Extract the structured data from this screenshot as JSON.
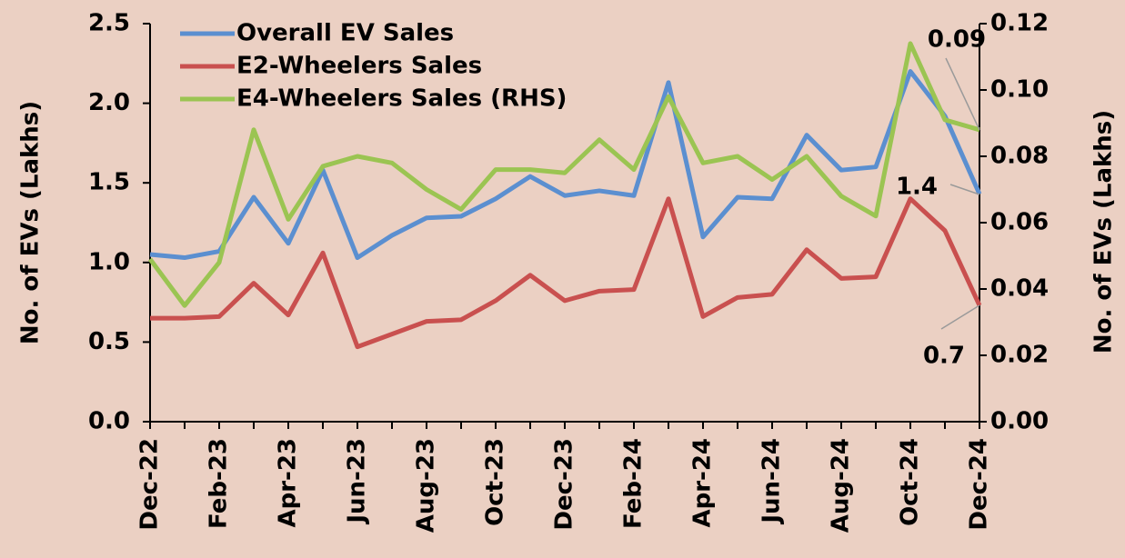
{
  "chart_data": {
    "type": "line",
    "categories": [
      "Dec-22",
      null,
      "Feb-23",
      null,
      "Apr-23",
      null,
      "Jun-23",
      null,
      "Aug-23",
      null,
      "Oct-23",
      null,
      "Dec-23",
      null,
      "Feb-24",
      null,
      "Apr-24",
      null,
      "Jun-24",
      null,
      "Aug-24",
      null,
      "Oct-24",
      null,
      "Dec-24"
    ],
    "series": [
      {
        "name": "Overall EV Sales",
        "color": "#5b8fd0",
        "values": [
          1.05,
          1.03,
          1.07,
          1.41,
          1.12,
          1.58,
          1.03,
          1.17,
          1.28,
          1.29,
          1.4,
          1.54,
          1.42,
          1.45,
          1.42,
          2.13,
          1.16,
          1.41,
          1.4,
          1.8,
          1.58,
          1.6,
          2.2,
          1.92,
          1.43
        ]
      },
      {
        "name": "E2-Wheelers Sales",
        "color": "#c9504f",
        "values": [
          0.65,
          0.65,
          0.66,
          0.87,
          0.67,
          1.06,
          0.47,
          0.55,
          0.63,
          0.64,
          0.76,
          0.92,
          0.76,
          0.82,
          0.83,
          1.4,
          0.66,
          0.78,
          0.8,
          1.08,
          0.9,
          0.91,
          1.4,
          1.2,
          0.73
        ]
      },
      {
        "name": "E4-Wheelers Sales (RHS)",
        "color": "#9bc452",
        "axis": "y2",
        "values": [
          0.049,
          0.035,
          0.048,
          0.088,
          0.061,
          0.077,
          0.08,
          0.078,
          0.07,
          0.064,
          0.076,
          0.076,
          0.075,
          0.085,
          0.076,
          0.098,
          0.078,
          0.08,
          0.073,
          0.08,
          0.068,
          0.062,
          0.114,
          0.091,
          0.088
        ]
      }
    ],
    "ylabel": "No. of EVs (Lakhs)",
    "y2label": "No. of EVs (Lakhs)",
    "ylim": [
      0,
      2.5
    ],
    "yticks": [
      {
        "value": 0,
        "label": "0.0"
      },
      0.5,
      {
        "value": 1,
        "label": "1.0"
      },
      1.5,
      {
        "value": 2,
        "label": "2.0"
      },
      2.5
    ],
    "y2lim": [
      0,
      0.12
    ],
    "y2ticks": [
      {
        "value": 0,
        "label": "0.00"
      },
      0.02,
      0.04,
      0.06,
      0.08,
      {
        "value": 0.1,
        "label": "0.10"
      },
      0.12
    ],
    "annotations": [
      "0.09",
      "1.4",
      "0.7"
    ],
    "legend": "upper left",
    "grid": false
  }
}
